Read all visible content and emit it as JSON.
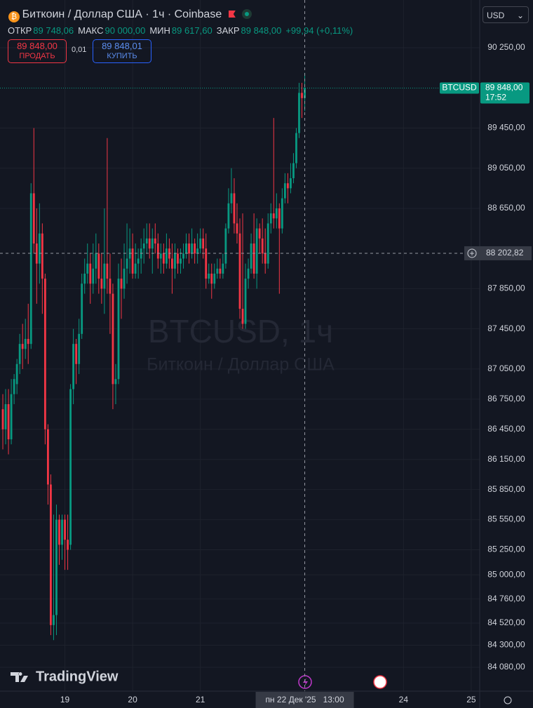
{
  "header": {
    "symbol": "Биткоин / Доллар США · 1ч · Coinbase",
    "ohlc": [
      {
        "label": "ОТКР",
        "value": "89 748,06"
      },
      {
        "label": "МАКС",
        "value": "90 000,00"
      },
      {
        "label": "МИН",
        "value": "89 617,60"
      },
      {
        "label": "ЗАКР",
        "value": "89 848,00"
      }
    ],
    "change": "+99,94 (+0,11%)",
    "sell": {
      "price": "89 848,00",
      "label": "ПРОДАТЬ"
    },
    "spread": "0,01",
    "buy": {
      "price": "89 848,01",
      "label": "КУПИТЬ"
    }
  },
  "currency": "USD",
  "logo": "TradingView",
  "chart_data": {
    "type": "candlestick",
    "watermark": {
      "title": "BTCUSD, 1ч",
      "subtitle": "Биткоин / Доллар США"
    },
    "up_color": "#089981",
    "down_color": "#f23645",
    "grid": true,
    "open": [
      86650,
      86450,
      86700,
      86350,
      86800,
      86900,
      87100,
      87300,
      87250,
      87350,
      87300,
      88800,
      88300,
      88100,
      88400,
      87950,
      86450,
      85900,
      84500,
      84600,
      85550,
      85300,
      85550,
      85350,
      85300,
      86850,
      87300,
      87100,
      87400,
      87900,
      88000,
      88100,
      87900,
      88050,
      88200,
      87950,
      87850,
      88100,
      87950,
      87800,
      86900,
      86950,
      87950,
      87850,
      88050,
      88150,
      88250,
      88000,
      88100,
      88150,
      88250,
      88300,
      88350,
      88250,
      88350,
      88300,
      88150,
      88200,
      88100,
      88250,
      88150,
      88050,
      88200,
      88100,
      88150,
      88200,
      88300,
      88200,
      88300,
      88200,
      88250,
      88350,
      88250,
      87950,
      88000,
      87900,
      88000,
      88050,
      88000,
      88100,
      88450,
      88700,
      88800,
      88500,
      88400,
      87650,
      87500,
      87950,
      88050,
      88300,
      88000,
      88450,
      88350,
      88200,
      88100,
      88500,
      88600,
      88550,
      88650,
      88450,
      88750,
      88900,
      88850,
      88950,
      89100,
      89400,
      89800,
      89748.06
    ],
    "high": [
      86800,
      86850,
      86850,
      86950,
      87000,
      87150,
      87400,
      87500,
      87550,
      87700,
      88900,
      89450,
      88650,
      88700,
      88500,
      88000,
      86500,
      86000,
      85600,
      85700,
      85600,
      85600,
      85600,
      85600,
      86900,
      87450,
      87350,
      87550,
      88000,
      88150,
      88300,
      88200,
      88300,
      88400,
      88300,
      88200,
      88650,
      89350,
      88200,
      87900,
      87100,
      88100,
      88150,
      88300,
      88500,
      88450,
      88400,
      88300,
      88250,
      88350,
      88450,
      88500,
      88500,
      88450,
      88500,
      88400,
      88300,
      88300,
      88400,
      88350,
      88300,
      88300,
      88250,
      88250,
      88300,
      88400,
      88400,
      88450,
      88350,
      88400,
      88450,
      88450,
      88400,
      88100,
      88100,
      88100,
      88150,
      88150,
      88200,
      88500,
      88850,
      89050,
      88950,
      88700,
      88550,
      88600,
      88100,
      88150,
      88400,
      88600,
      88550,
      88500,
      88550,
      88450,
      88600,
      88700,
      89550,
      88800,
      88700,
      88850,
      89000,
      89000,
      89100,
      89200,
      89450,
      89900,
      89900,
      90000
    ],
    "low": [
      86250,
      86300,
      86200,
      86300,
      86700,
      86800,
      87000,
      87050,
      87150,
      87100,
      87250,
      88200,
      87700,
      87900,
      87600,
      86300,
      85700,
      84400,
      84350,
      84400,
      85100,
      85150,
      85050,
      85050,
      85250,
      86700,
      86900,
      87000,
      87350,
      87800,
      87900,
      87700,
      87800,
      87900,
      87800,
      87700,
      87600,
      87800,
      87400,
      86650,
      86700,
      86900,
      87550,
      87750,
      87900,
      88000,
      87950,
      87950,
      87950,
      88000,
      88100,
      88200,
      88150,
      88000,
      88200,
      88050,
      88000,
      88000,
      88050,
      88050,
      87800,
      87950,
      88000,
      88000,
      88050,
      88150,
      88100,
      88150,
      88100,
      88100,
      88200,
      88150,
      87850,
      87900,
      87750,
      87850,
      87950,
      87950,
      87950,
      88050,
      88400,
      88600,
      88400,
      88300,
      87550,
      87450,
      87450,
      87850,
      88000,
      87950,
      87850,
      88200,
      88100,
      88000,
      88050,
      88400,
      88450,
      88450,
      87800,
      88400,
      88700,
      88700,
      88800,
      88900,
      89050,
      89350,
      89550,
      89617.6
    ],
    "close": [
      86450,
      86700,
      86350,
      86800,
      86950,
      87100,
      87300,
      87250,
      87350,
      87300,
      88800,
      88300,
      88100,
      88400,
      87950,
      86450,
      85900,
      84500,
      84600,
      85550,
      85300,
      85550,
      85350,
      85250,
      86850,
      87300,
      87100,
      87400,
      87900,
      88000,
      88100,
      87900,
      88050,
      88200,
      87950,
      87850,
      88100,
      87950,
      87800,
      86900,
      86950,
      87950,
      87850,
      88050,
      88150,
      88250,
      88000,
      88100,
      88150,
      88250,
      88300,
      88350,
      88250,
      88350,
      88300,
      88150,
      88200,
      88100,
      88250,
      88150,
      88050,
      88200,
      88100,
      88150,
      88200,
      88300,
      88200,
      88300,
      88200,
      88250,
      88350,
      88250,
      87950,
      88000,
      87900,
      88000,
      88050,
      88000,
      88100,
      88450,
      88700,
      88800,
      88500,
      88400,
      87650,
      87500,
      87950,
      88050,
      88300,
      88000,
      88450,
      88350,
      88200,
      88100,
      88500,
      88600,
      88550,
      88650,
      88450,
      88750,
      88900,
      88850,
      88950,
      89100,
      89400,
      89800,
      89748.06,
      89848
    ],
    "xlim": [
      -1,
      169
    ],
    "xticks": [
      {
        "value": 22,
        "label": "19"
      },
      {
        "value": 46,
        "label": "20"
      },
      {
        "value": 70,
        "label": "21"
      },
      {
        "value": 142,
        "label": "24"
      },
      {
        "value": 166,
        "label": "25"
      }
    ],
    "ylim": [
      83842,
      90725
    ],
    "yticks": [
      {
        "value": 90250,
        "label": "90 250,00"
      },
      {
        "value": 89450,
        "label": "89 450,00"
      },
      {
        "value": 89050,
        "label": "89 050,00"
      },
      {
        "value": 88650,
        "label": "88 650,00"
      },
      {
        "value": 87850,
        "label": "87 850,00"
      },
      {
        "value": 87450,
        "label": "87 450,00"
      },
      {
        "value": 87050,
        "label": "87 050,00"
      },
      {
        "value": 86750,
        "label": "86 750,00"
      },
      {
        "value": 86450,
        "label": "86 450,00"
      },
      {
        "value": 86150,
        "label": "86 150,00"
      },
      {
        "value": 85850,
        "label": "85 850,00"
      },
      {
        "value": 85550,
        "label": "85 550,00"
      },
      {
        "value": 85250,
        "label": "85 250,00"
      },
      {
        "value": 85000,
        "label": "85 000,00"
      },
      {
        "value": 84760,
        "label": "84 760,00"
      },
      {
        "value": 84520,
        "label": "84 520,00"
      },
      {
        "value": 84300,
        "label": "84 300,00"
      },
      {
        "value": 84080,
        "label": "84 080,00"
      }
    ],
    "last_price": {
      "value": 89848,
      "label": "89 848,00",
      "symbol": "BTCUSD",
      "countdown": "17:52"
    },
    "crosshair": {
      "time_label": "пн 22 Дек '25   13:00",
      "price": {
        "value": 88202.82,
        "label": "88 202,82"
      }
    }
  }
}
